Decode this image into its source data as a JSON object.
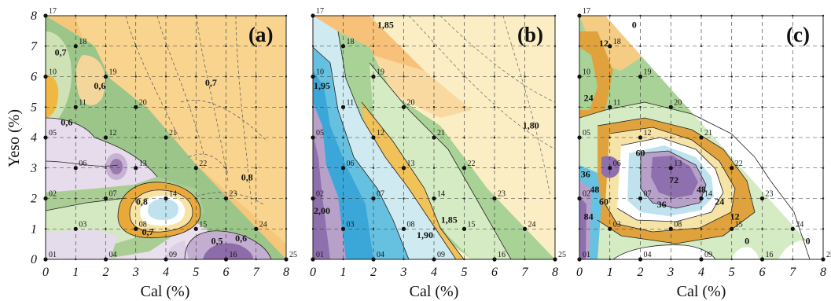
{
  "chart_data": {
    "type": "contour",
    "ylabel": "Yeso (%)",
    "panels": [
      {
        "panel_label": "(a)",
        "xlabel": "Cal (%)",
        "x_ticks": [
          "0",
          "1",
          "2",
          "3",
          "4",
          "5",
          "6",
          "7",
          "8"
        ],
        "y_ticks": [
          "0",
          "1",
          "2",
          "3",
          "4",
          "5",
          "6",
          "7",
          "8"
        ],
        "xlim": [
          0,
          8
        ],
        "ylim": [
          0,
          8
        ],
        "contour_labels": [
          {
            "text": "0,7",
            "x": 0.5,
            "y": 6.7
          },
          {
            "text": "0,6",
            "x": 1.8,
            "y": 5.6
          },
          {
            "text": "0,7",
            "x": 5.5,
            "y": 5.7
          },
          {
            "text": "0,6",
            "x": 0.7,
            "y": 4.4
          },
          {
            "text": "0,8",
            "x": 6.7,
            "y": 2.6
          },
          {
            "text": "0,8",
            "x": 3.2,
            "y": 1.8
          },
          {
            "text": "0,7",
            "x": 3.4,
            "y": 0.8
          },
          {
            "text": "0,6",
            "x": 6.5,
            "y": 0.6
          },
          {
            "text": "0,5",
            "x": 5.7,
            "y": 0.5
          }
        ]
      },
      {
        "panel_label": "(b)",
        "xlabel": "Cal (%)",
        "x_ticks": [
          "0",
          "1",
          "2",
          "3",
          "4",
          "5",
          "6",
          "7",
          "8"
        ],
        "y_ticks": [
          "0",
          "1",
          "2",
          "3",
          "4",
          "5",
          "6",
          "7",
          "8"
        ],
        "xlim": [
          0,
          8
        ],
        "ylim": [
          0,
          8
        ],
        "contour_labels": [
          {
            "text": "1,85",
            "x": 2.4,
            "y": 7.6
          },
          {
            "text": "1,95",
            "x": 0.3,
            "y": 5.6
          },
          {
            "text": "1,80",
            "x": 7.2,
            "y": 4.3
          },
          {
            "text": "2,00",
            "x": 0.3,
            "y": 1.5
          },
          {
            "text": "1,85",
            "x": 4.5,
            "y": 1.2
          },
          {
            "text": "1,90",
            "x": 3.7,
            "y": 0.7
          }
        ]
      },
      {
        "panel_label": "(c)",
        "xlabel": "Cal (%)",
        "x_ticks": [
          "0",
          "1",
          "2",
          "3",
          "4",
          "5",
          "6",
          "7",
          "8"
        ],
        "y_ticks": [
          "0",
          "1",
          "2",
          "3",
          "4",
          "5",
          "6",
          "7",
          "8"
        ],
        "xlim": [
          0,
          8
        ],
        "ylim": [
          0,
          8
        ],
        "contour_labels": [
          {
            "text": "0",
            "x": 1.8,
            "y": 7.6
          },
          {
            "text": "12",
            "x": 0.8,
            "y": 7.0
          },
          {
            "text": "24",
            "x": 0.3,
            "y": 5.2
          },
          {
            "text": "60",
            "x": 2.0,
            "y": 3.4
          },
          {
            "text": "36",
            "x": 0.2,
            "y": 2.7
          },
          {
            "text": "72",
            "x": 3.1,
            "y": 2.5
          },
          {
            "text": "48",
            "x": 0.5,
            "y": 2.2
          },
          {
            "text": "48",
            "x": 4.0,
            "y": 2.2
          },
          {
            "text": "24",
            "x": 4.6,
            "y": 1.8
          },
          {
            "text": "36",
            "x": 2.7,
            "y": 1.7
          },
          {
            "text": "60",
            "x": 0.8,
            "y": 1.8
          },
          {
            "text": "84",
            "x": 0.3,
            "y": 1.3
          },
          {
            "text": "12",
            "x": 5.1,
            "y": 1.3
          },
          {
            "text": "0",
            "x": 5.5,
            "y": 0.5
          },
          {
            "text": "0",
            "x": 7.5,
            "y": 0.5
          }
        ]
      }
    ],
    "sample_points": [
      {
        "id": "01",
        "x": 0,
        "y": 0
      },
      {
        "id": "02",
        "x": 0,
        "y": 2
      },
      {
        "id": "03",
        "x": 1,
        "y": 1
      },
      {
        "id": "04",
        "x": 2,
        "y": 0
      },
      {
        "id": "05",
        "x": 0,
        "y": 4
      },
      {
        "id": "06",
        "x": 1,
        "y": 3
      },
      {
        "id": "07",
        "x": 2,
        "y": 2
      },
      {
        "id": "08",
        "x": 3,
        "y": 1
      },
      {
        "id": "09",
        "x": 4,
        "y": 0
      },
      {
        "id": "10",
        "x": 0,
        "y": 6
      },
      {
        "id": "11",
        "x": 1,
        "y": 5
      },
      {
        "id": "12",
        "x": 2,
        "y": 4
      },
      {
        "id": "13",
        "x": 3,
        "y": 3
      },
      {
        "id": "14",
        "x": 4,
        "y": 2
      },
      {
        "id": "15",
        "x": 5,
        "y": 1
      },
      {
        "id": "16",
        "x": 6,
        "y": 0
      },
      {
        "id": "17",
        "x": 0,
        "y": 8
      },
      {
        "id": "18",
        "x": 1,
        "y": 7
      },
      {
        "id": "19",
        "x": 2,
        "y": 6
      },
      {
        "id": "20",
        "x": 3,
        "y": 5
      },
      {
        "id": "21",
        "x": 4,
        "y": 4
      },
      {
        "id": "22",
        "x": 5,
        "y": 3
      },
      {
        "id": "23",
        "x": 6,
        "y": 2
      },
      {
        "id": "24",
        "x": 7,
        "y": 1
      },
      {
        "id": "25",
        "x": 8,
        "y": 0
      }
    ]
  }
}
